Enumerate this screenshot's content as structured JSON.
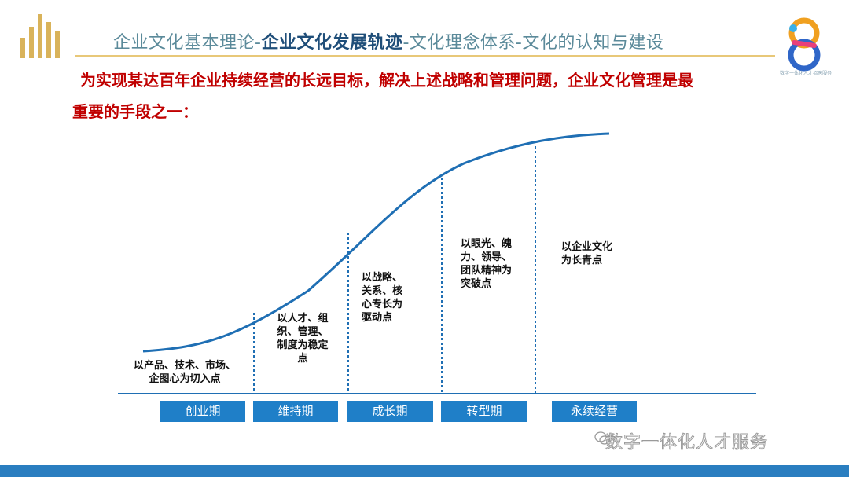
{
  "header": {
    "title_part1": "企业文化基本理论-",
    "title_part2": "企业文化发展轨迹",
    "title_part3": "-文化理念体系-文化的认知与建设",
    "brand_tag": "数字一体化人才招聘服务"
  },
  "intro": {
    "line1": "为实现某达百年企业持续经营的长远目标，解决上述战略和管理问题，企业文化管理是最",
    "line2": "重要的手段之一："
  },
  "diagram": {
    "stages": [
      {
        "name": "创业期",
        "desc": [
          "以产品、技术、市场、",
          "企图心为切入点"
        ]
      },
      {
        "name": "维持期",
        "desc": [
          "以人才、组",
          "织、管理、",
          "制度为稳定",
          "点"
        ]
      },
      {
        "name": "成长期",
        "desc": [
          "以战略、",
          "关系、核",
          "心专长为",
          "驱动点"
        ]
      },
      {
        "name": "转型期",
        "desc": [
          "以眼光、魄",
          "力、领导、",
          "团队精神为",
          "突破点"
        ]
      },
      {
        "name": "永续经营",
        "desc": [
          "以企业文化",
          "为长青点"
        ]
      }
    ],
    "colors": {
      "curve": "#1f6fb4",
      "stage_fill": "#1f7fc8",
      "title_accent": "#1f4e79"
    }
  },
  "watermark": {
    "text": "数字一体化人才服务",
    "icon": "wechat-icon"
  }
}
